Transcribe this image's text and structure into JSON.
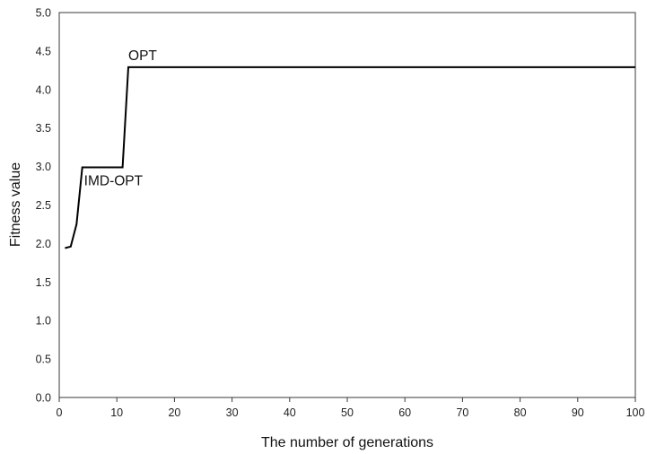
{
  "chart_data": {
    "type": "line",
    "title": "",
    "xlabel": "The number of generations",
    "ylabel": "Fitness value",
    "xlim": [
      0,
      100
    ],
    "ylim": [
      0,
      5
    ],
    "xticks": [
      0,
      10,
      20,
      30,
      40,
      50,
      60,
      70,
      80,
      90,
      100
    ],
    "yticks": [
      "0.0",
      "0.5",
      "1.0",
      "1.5",
      "2.0",
      "2.5",
      "3.0",
      "3.5",
      "4.0",
      "4.5",
      "5.0"
    ],
    "grid": false,
    "legend": "none",
    "series": [
      {
        "color": "#000000",
        "x": [
          1,
          2,
          3,
          4,
          5,
          6,
          7,
          8,
          9,
          10,
          11,
          12,
          13,
          14,
          15,
          20,
          30,
          40,
          50,
          60,
          70,
          80,
          90,
          100
        ],
        "y": [
          1.94,
          1.96,
          2.25,
          2.99,
          2.99,
          2.99,
          2.99,
          2.99,
          2.99,
          2.99,
          2.99,
          4.29,
          4.29,
          4.29,
          4.29,
          4.29,
          4.29,
          4.29,
          4.29,
          4.29,
          4.29,
          4.29,
          4.29,
          4.29
        ]
      }
    ],
    "annotations": [
      {
        "text": "OPT",
        "x": 12,
        "y": 4.29
      },
      {
        "text": "IMD-OPT",
        "x": 4,
        "y": 2.99
      }
    ]
  }
}
